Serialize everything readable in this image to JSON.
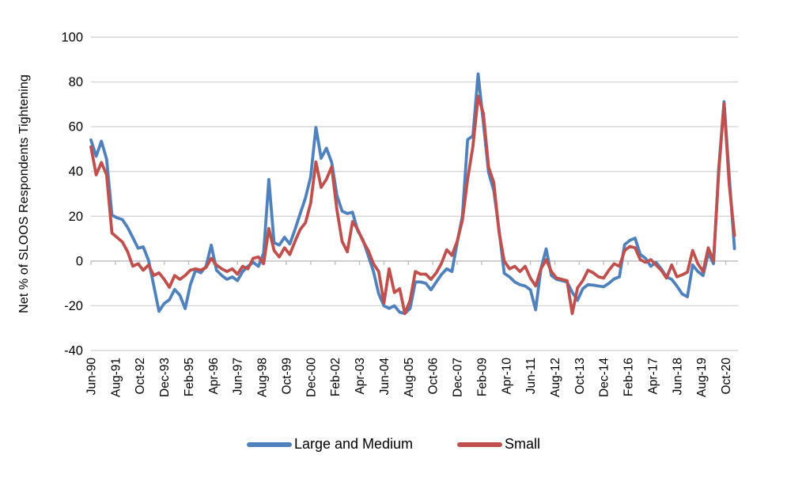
{
  "chart_data": {
    "type": "line",
    "title": "",
    "ylabel": "Net % of SLOOS Respondents Tightening",
    "xlabel": "",
    "ylim": [
      -40,
      100
    ],
    "y_ticks": [
      100,
      80,
      60,
      40,
      20,
      0,
      -20,
      -40
    ],
    "grid": "horizontal only",
    "gridline_color": "#d6d6d6",
    "axis_color": "#bfbfbf",
    "text_color": "#000000",
    "legend_position": "bottom center",
    "x_start": "Jun-1990",
    "x_end": "Mar-2021",
    "frequency": "quarterly",
    "x_tick_interval_months": 14,
    "x_tick_labels": [
      "Jun-90",
      "Aug-91",
      "Oct-92",
      "Dec-93",
      "Feb-95",
      "Apr-96",
      "Jun-97",
      "Aug-98",
      "Oct-99",
      "Dec-00",
      "Feb-02",
      "Apr-03",
      "Jun-04",
      "Aug-05",
      "Oct-06",
      "Dec-07",
      "Feb-09",
      "Apr-10",
      "Jun-11",
      "Aug-12",
      "Oct-13",
      "Dec-14",
      "Feb-16",
      "Apr-17",
      "Jun-18",
      "Aug-19",
      "Oct-20"
    ],
    "series": [
      {
        "name": "Large and Medium",
        "color": "#4F81BD",
        "values": [
          54.1,
          46.8,
          53.5,
          45.5,
          20.5,
          19.3,
          18.5,
          15.0,
          10.5,
          5.7,
          6.3,
          0.3,
          -11.0,
          -22.5,
          -19.0,
          -17.3,
          -12.7,
          -15.3,
          -21.3,
          -10.6,
          -4.1,
          -5.3,
          -2.4,
          7.1,
          -4.1,
          -6.5,
          -8.2,
          -7.1,
          -8.8,
          -4.7,
          -2.4,
          -0.6,
          -2.4,
          3.5,
          36.4,
          8.2,
          7.1,
          10.6,
          7.6,
          14.1,
          21.2,
          28.2,
          37.6,
          59.7,
          45.9,
          50.4,
          44.1,
          29.4,
          22.3,
          21.2,
          21.8,
          13.5,
          9.4,
          2.4,
          -4.7,
          -14.7,
          -20.0,
          -21.2,
          -20.0,
          -22.9,
          -23.5,
          -21.2,
          -9.4,
          -9.4,
          -10.0,
          -12.9,
          -9.4,
          -6.0,
          -3.5,
          -4.7,
          8.2,
          20.0,
          54.2,
          55.9,
          83.6,
          61.8,
          39.6,
          31.5,
          14.0,
          -5.5,
          -7.1,
          -9.4,
          -10.6,
          -11.2,
          -12.9,
          -21.8,
          -3.5,
          5.4,
          -6.5,
          -8.2,
          -8.8,
          -9.4,
          -14.0,
          -17.6,
          -12.4,
          -10.6,
          -10.8,
          -11.2,
          -11.5,
          -10.0,
          -8.0,
          -7.1,
          7.3,
          9.2,
          10.2,
          2.9,
          1.2,
          -2.4,
          -0.6,
          -3.5,
          -7.1,
          -8.2,
          -11.2,
          -14.7,
          -16.0,
          -1.8,
          -4.7,
          -6.5,
          3.5,
          -1.2,
          41.5,
          71.2,
          37.7,
          5.5
        ]
      },
      {
        "name": "Small",
        "color": "#C0504D",
        "values": [
          51.0,
          38.5,
          44.0,
          38.5,
          12.5,
          10.5,
          8.5,
          4.2,
          -2.3,
          -1.2,
          -4.1,
          -1.8,
          -6.5,
          -5.3,
          -8.2,
          -11.8,
          -6.5,
          -8.2,
          -6.5,
          -4.1,
          -3.5,
          -4.1,
          -2.9,
          1.2,
          -1.8,
          -3.5,
          -4.7,
          -3.5,
          -5.9,
          -2.4,
          -3.5,
          1.2,
          1.8,
          -1.2,
          14.5,
          4.7,
          1.8,
          5.9,
          2.9,
          8.8,
          14.1,
          17.1,
          25.9,
          44.3,
          32.9,
          36.5,
          42.1,
          23.0,
          8.8,
          4.1,
          17.6,
          14.1,
          8.8,
          4.7,
          -1.2,
          -4.7,
          -18.8,
          -3.5,
          -14.1,
          -12.4,
          -23.5,
          -17.6,
          -4.7,
          -5.9,
          -5.9,
          -8.2,
          -5.3,
          -1.0,
          5.0,
          2.5,
          8.8,
          18.2,
          36.5,
          51.2,
          73.6,
          66.0,
          42.0,
          35.0,
          13.0,
          0.0,
          -3.5,
          -2.4,
          -4.7,
          -2.4,
          -7.6,
          -11.2,
          -3.5,
          0.6,
          -4.7,
          -7.6,
          -8.2,
          -8.8,
          -23.5,
          -12.0,
          -8.8,
          -4.1,
          -5.3,
          -7.1,
          -7.6,
          -4.1,
          -1.2,
          -2.4,
          4.7,
          6.5,
          5.9,
          0.6,
          -0.6,
          0.6,
          -1.8,
          -4.1,
          -7.6,
          -1.8,
          -7.1,
          -6.2,
          -5.0,
          4.7,
          -1.2,
          -4.7,
          5.9,
          0.0,
          39.7,
          70.3,
          34.0,
          11.4
        ]
      }
    ]
  }
}
